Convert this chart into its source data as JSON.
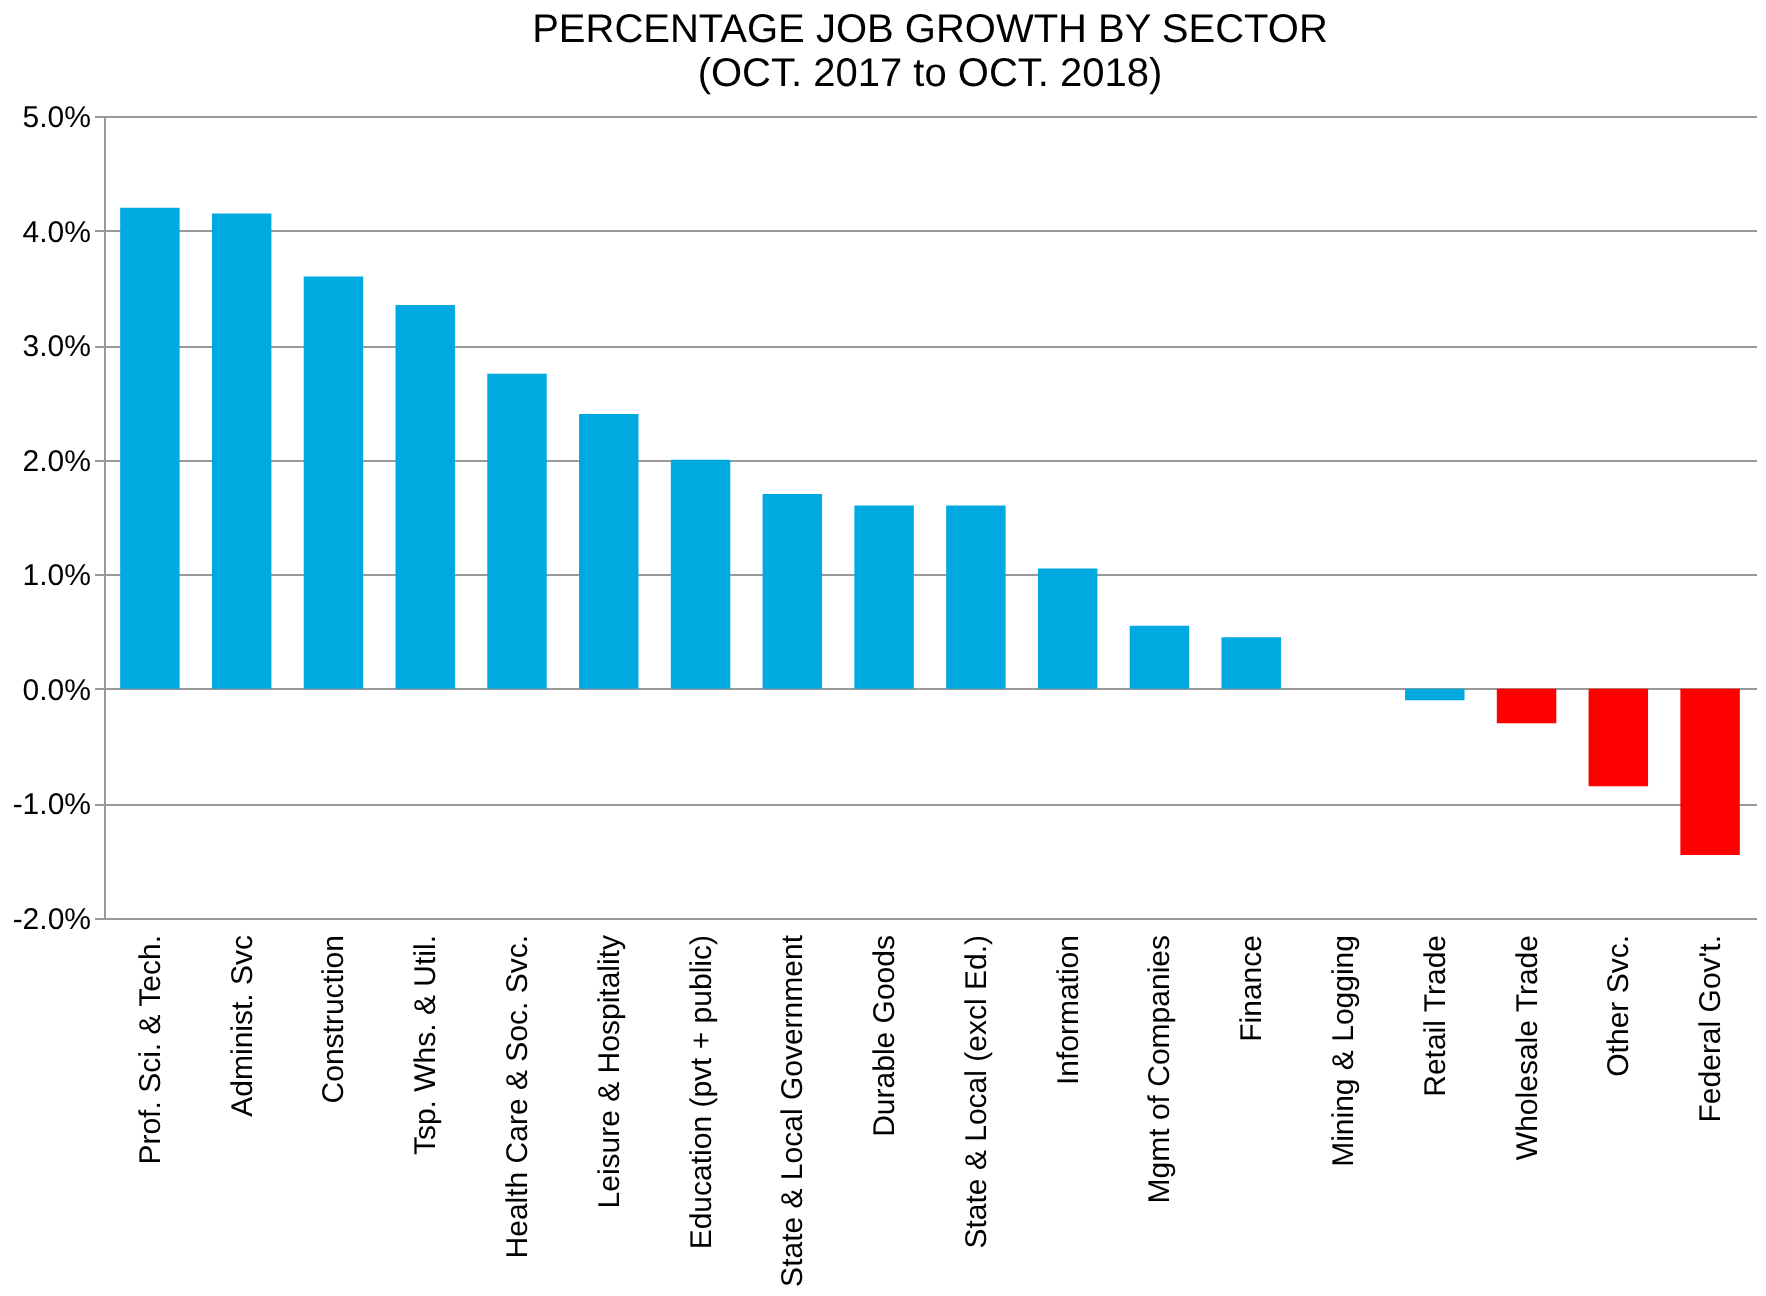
{
  "chart_data": {
    "type": "bar",
    "title": [
      "PERCENTAGE JOB GROWTH BY SECTOR",
      "(OCT.  2017 to OCT. 2018)"
    ],
    "categories": [
      "Prof. Sci. & Tech.",
      "Administ. Svc",
      "Construction",
      "Tsp. Whs. & Util.",
      "Health Care & Soc. Svc.",
      "Leisure & Hospitality",
      "Education (pvt + public)",
      "State & Local Government",
      "Durable Goods",
      "State & Local (excl Ed.)",
      "Information",
      "Mgmt of Companies",
      "Finance",
      "Mining & Logging",
      "Retail Trade",
      "Wholesale Trade",
      "Other Svc.",
      "Federal Gov't."
    ],
    "values": [
      4.2,
      4.15,
      3.6,
      3.35,
      2.75,
      2.4,
      2.0,
      1.7,
      1.6,
      1.6,
      1.05,
      0.55,
      0.45,
      0.0,
      -0.1,
      -0.3,
      -0.85,
      -1.45
    ],
    "colors": [
      "#00a9e0",
      "#00a9e0",
      "#00a9e0",
      "#00a9e0",
      "#00a9e0",
      "#00a9e0",
      "#00a9e0",
      "#00a9e0",
      "#00a9e0",
      "#00a9e0",
      "#00a9e0",
      "#00a9e0",
      "#00a9e0",
      "#00a9e0",
      "#00a9e0",
      "#ff0000",
      "#ff0000",
      "#ff0000"
    ],
    "ylim": [
      -2,
      5
    ],
    "yticks": [
      {
        "value": -2,
        "label": "-2.0%"
      },
      {
        "value": -1,
        "label": "-1.0%"
      },
      {
        "value": 0,
        "label": "0.0%"
      },
      {
        "value": 1,
        "label": "1.0%"
      },
      {
        "value": 2,
        "label": "2.0%"
      },
      {
        "value": 3,
        "label": "3.0%"
      },
      {
        "value": 4,
        "label": "4.0%"
      },
      {
        "value": 5,
        "label": "5.0%"
      }
    ],
    "grid": "y"
  }
}
